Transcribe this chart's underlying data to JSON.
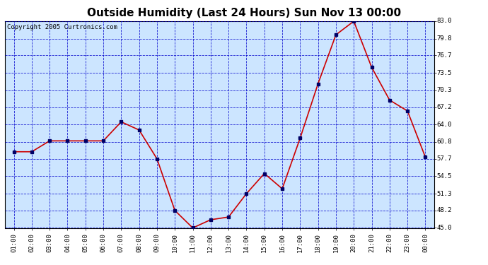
{
  "title": "Outside Humidity (Last 24 Hours) Sun Nov 13 00:00",
  "copyright": "Copyright 2005 Curtronics.com",
  "x_labels": [
    "01:00",
    "02:00",
    "03:00",
    "04:00",
    "05:00",
    "06:00",
    "07:00",
    "08:00",
    "09:00",
    "10:00",
    "11:00",
    "12:00",
    "13:00",
    "14:00",
    "15:00",
    "16:00",
    "17:00",
    "18:00",
    "19:00",
    "20:00",
    "21:00",
    "22:00",
    "23:00",
    "00:00"
  ],
  "y_values": [
    59.0,
    59.0,
    61.0,
    61.0,
    61.0,
    61.0,
    64.5,
    63.0,
    57.7,
    48.2,
    45.0,
    46.5,
    47.0,
    51.3,
    55.0,
    52.2,
    61.5,
    71.5,
    80.5,
    83.0,
    74.5,
    68.5,
    66.5,
    58.0
  ],
  "line_color": "#cc0000",
  "marker_color": "#000066",
  "bg_color": "#cce5ff",
  "outer_bg_color": "#ffffff",
  "grid_color": "#0000cc",
  "ylim_min": 45.0,
  "ylim_max": 83.0,
  "yticks": [
    45.0,
    48.2,
    51.3,
    54.5,
    57.7,
    60.8,
    64.0,
    67.2,
    70.3,
    73.5,
    76.7,
    79.8,
    83.0
  ],
  "title_fontsize": 11,
  "copyright_fontsize": 6.5,
  "tick_fontsize": 6.5,
  "figwidth": 6.9,
  "figheight": 3.75
}
